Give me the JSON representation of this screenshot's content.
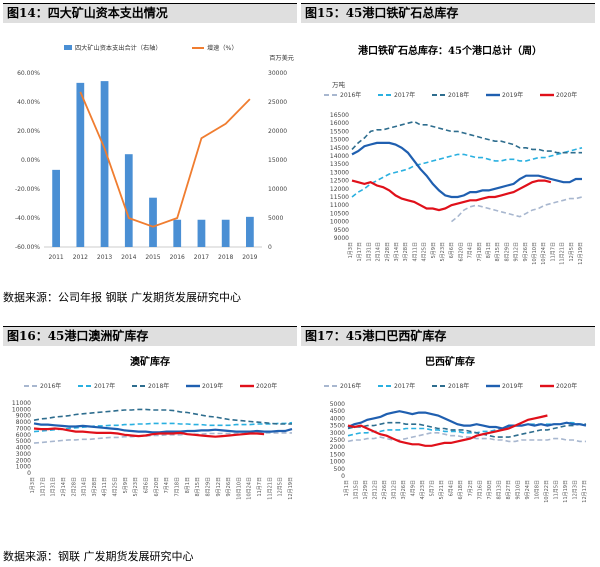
{
  "panels": [
    {
      "label": "图14：四大矿山资本支出情况"
    },
    {
      "label": "图15：45港口铁矿石总库存"
    },
    {
      "label": "图16：45港口澳洲矿库存"
    },
    {
      "label": "图17：45港口巴西矿库存"
    }
  ],
  "sources": [
    "数据来源：公司年报  钢联  广发期货发展研究中心",
    "数据来源：钢联  广发期货发展研究中心"
  ],
  "chart_data": [
    {
      "type": "bar",
      "title": "",
      "categories": [
        "2011",
        "2012",
        "2013",
        "2014",
        "2015",
        "2016",
        "2017",
        "2018",
        "2019"
      ],
      "series": [
        {
          "name": "四大矿山资本支出合计（右轴）",
          "type": "bar",
          "axis": "right",
          "color": "#4a8fd4",
          "values": [
            13300,
            28300,
            28600,
            16000,
            8500,
            4700,
            4700,
            4700,
            5200
          ]
        },
        {
          "name": "增速（%）",
          "type": "line",
          "axis": "left",
          "color": "#f07d30",
          "values": [
            null,
            47,
            8,
            -40,
            -46,
            -40,
            15,
            25,
            42
          ]
        }
      ],
      "left_axis": {
        "min": -60,
        "max": 60,
        "step": 20,
        "unit": "%"
      },
      "right_axis": {
        "min": 0,
        "max": 30000,
        "step": 5000,
        "label": "百万美元"
      }
    },
    {
      "type": "line",
      "title": "港口铁矿石总库存：45个港口总计（周）",
      "unit": "万吨",
      "ylim": [
        9000,
        16500
      ],
      "ystep": 500,
      "xlabels": [
        "1月3日",
        "1月17日",
        "1月31日",
        "2月14日",
        "2月28日",
        "3月14日",
        "3月28日",
        "4月11日",
        "4月25日",
        "5月9日",
        "5月23日",
        "6月6日",
        "6月20日",
        "7月4日",
        "7月18日",
        "8月1日",
        "8月15日",
        "8月29日",
        "9月12日",
        "9月26日",
        "10月10日",
        "10月24日",
        "11月7日",
        "11月21日",
        "12月5日",
        "12月19日"
      ],
      "series": [
        {
          "name": "2016年",
          "color": "#a8b7cf",
          "dash": "5,3",
          "values": [
            null,
            null,
            null,
            null,
            null,
            null,
            null,
            null,
            null,
            null,
            null,
            null,
            null,
            null,
            null,
            null,
            10000,
            10300,
            10700,
            10900,
            11000,
            10900,
            10800,
            10700,
            10600,
            10500,
            10400,
            10300,
            10500,
            10700,
            10800,
            11000,
            11100,
            11200,
            11300,
            11400,
            11400,
            11500
          ]
        },
        {
          "name": "2017年",
          "color": "#2ab0e0",
          "dash": "5,3",
          "values": [
            11500,
            11800,
            12000,
            12300,
            12500,
            12700,
            12900,
            13000,
            13100,
            13200,
            13400,
            13500,
            13600,
            13700,
            13800,
            13900,
            14000,
            14100,
            14100,
            14000,
            13900,
            13900,
            13800,
            13700,
            13700,
            13800,
            13800,
            13700,
            13700,
            13800,
            13900,
            13900,
            14000,
            14100,
            14200,
            14300,
            14400,
            14500
          ]
        },
        {
          "name": "2018年",
          "color": "#2e6d8e",
          "dash": "5,3",
          "values": [
            14400,
            14800,
            15100,
            15500,
            15600,
            15600,
            15700,
            15800,
            15900,
            16000,
            16100,
            15900,
            15900,
            15800,
            15700,
            15600,
            15500,
            15500,
            15400,
            15300,
            15200,
            15100,
            15000,
            14900,
            14900,
            14800,
            14700,
            14500,
            14500,
            14400,
            14400,
            14300,
            14300,
            14200,
            14200,
            14200,
            14200,
            14200
          ]
        },
        {
          "name": "2019年",
          "color": "#1f5fb0",
          "dash": "",
          "values": [
            14100,
            14300,
            14600,
            14700,
            14800,
            14800,
            14800,
            14700,
            14500,
            14200,
            13700,
            13200,
            12800,
            12300,
            11900,
            11600,
            11500,
            11500,
            11600,
            11800,
            11800,
            11900,
            11900,
            12000,
            12100,
            12200,
            12300,
            12600,
            12800,
            12800,
            12800,
            12700,
            12600,
            12500,
            12400,
            12400,
            12600,
            12600
          ]
        },
        {
          "name": "2020年",
          "color": "#e0101a",
          "dash": "",
          "values": [
            12500,
            12400,
            12300,
            12400,
            12200,
            12100,
            11900,
            11600,
            11400,
            11300,
            11200,
            11000,
            10800,
            10800,
            10700,
            10800,
            11000,
            11100,
            11200,
            11300,
            11300,
            11400,
            11500,
            11500,
            11600,
            11700,
            11800,
            12000,
            12200,
            12400,
            12500,
            12500,
            12400,
            null,
            null,
            null,
            null,
            null
          ]
        }
      ]
    },
    {
      "type": "line",
      "title": "澳矿库存",
      "ylim": [
        0,
        11000
      ],
      "ystep": 1000,
      "xlabels": [
        "1月3日",
        "1月17日",
        "1月31日",
        "2月14日",
        "2月28日",
        "3月14日",
        "3月28日",
        "4月11日",
        "4月25日",
        "5月9日",
        "5月23日",
        "6月6日",
        "6月20日",
        "7月4日",
        "7月18日",
        "8月1日",
        "8月15日",
        "8月29日",
        "9月12日",
        "9月26日",
        "10月10日",
        "10月24日",
        "11月7日",
        "11月21日",
        "12月5日",
        "12月19日"
      ],
      "series": [
        {
          "name": "2016年",
          "color": "#a8b7cf",
          "dash": "5,3",
          "values": [
            4700,
            4800,
            4900,
            5000,
            5100,
            5200,
            5200,
            5300,
            5300,
            5400,
            5500,
            5600,
            5600,
            5700,
            5700,
            5800,
            5800,
            5900,
            5900,
            6000,
            6000,
            6000,
            6100,
            6100,
            6100,
            6200,
            6200,
            6200,
            6200,
            6200,
            6200,
            6300,
            6300,
            6300,
            6300,
            6300,
            6300,
            6300
          ]
        },
        {
          "name": "2017年",
          "color": "#2ab0e0",
          "dash": "5,3",
          "values": [
            6500,
            6600,
            6700,
            6800,
            6900,
            7000,
            7100,
            7200,
            7300,
            7400,
            7400,
            7500,
            7500,
            7600,
            7600,
            7700,
            7700,
            7800,
            7800,
            7800,
            7800,
            7700,
            7700,
            7600,
            7600,
            7500,
            7500,
            7500,
            7500,
            7600,
            7600,
            7600,
            7700,
            7700,
            7700,
            7800,
            7800,
            7900
          ]
        },
        {
          "name": "2018年",
          "color": "#2e6d8e",
          "dash": "5,3",
          "values": [
            8300,
            8500,
            8600,
            8800,
            8900,
            9000,
            9200,
            9300,
            9400,
            9500,
            9600,
            9700,
            9800,
            9900,
            9900,
            10000,
            10000,
            9900,
            9900,
            9900,
            9800,
            9600,
            9500,
            9300,
            9100,
            8900,
            8800,
            8600,
            8400,
            8300,
            8200,
            8100,
            8000,
            7900,
            7800,
            7700,
            7700,
            7700
          ]
        },
        {
          "name": "2019年",
          "color": "#1f5fb0",
          "dash": "",
          "values": [
            7800,
            7600,
            7600,
            7500,
            7400,
            7300,
            7300,
            7400,
            7300,
            7200,
            7100,
            7000,
            6900,
            6700,
            6600,
            6500,
            6500,
            6400,
            6400,
            6500,
            6500,
            6500,
            6600,
            6600,
            6700,
            6700,
            6800,
            6700,
            6600,
            6500,
            6500,
            6500,
            6600,
            6500,
            6500,
            6600,
            6600,
            6900
          ]
        },
        {
          "name": "2020年",
          "color": "#e0101a",
          "dash": "",
          "values": [
            7000,
            6900,
            6900,
            7000,
            6900,
            6700,
            6500,
            6500,
            6400,
            6300,
            6300,
            6300,
            6200,
            6000,
            5900,
            5800,
            5900,
            6100,
            6200,
            6200,
            6200,
            6300,
            6100,
            6000,
            5900,
            5800,
            5700,
            5800,
            5900,
            6000,
            6100,
            6200,
            6200,
            6100,
            null,
            null,
            null,
            null
          ]
        }
      ]
    },
    {
      "type": "line",
      "title": "巴西矿库存",
      "ylim": [
        0,
        5000
      ],
      "ystep": 500,
      "xlabels": [
        "1月1日",
        "1月15日",
        "1月29日",
        "2月12日",
        "2月26日",
        "3月12日",
        "3月26日",
        "4月9日",
        "4月23日",
        "5月7日",
        "5月21日",
        "6月4日",
        "6月18日",
        "7月2日",
        "7月16日",
        "7月30日",
        "8月13日",
        "8月27日",
        "9月10日",
        "9月24日",
        "10月8日",
        "10月22日",
        "11月5日",
        "11月19日",
        "12月3日",
        "12月17日"
      ],
      "series": [
        {
          "name": "2016年",
          "color": "#a8b7cf",
          "dash": "5,3",
          "values": [
            2400,
            2500,
            2500,
            2600,
            2600,
            2700,
            2600,
            2500,
            2500,
            2600,
            2700,
            2800,
            2900,
            3000,
            3000,
            2900,
            2800,
            2800,
            2700,
            2700,
            2600,
            2600,
            2600,
            2500,
            2500,
            2400,
            2400,
            2500,
            2500,
            2500,
            2500,
            2500,
            2600,
            2600,
            2500,
            2500,
            2400,
            2400
          ]
        },
        {
          "name": "2017年",
          "color": "#2ab0e0",
          "dash": "5,3",
          "values": [
            2800,
            2900,
            3000,
            3000,
            3100,
            3100,
            3200,
            3200,
            3200,
            3300,
            3300,
            3300,
            3300,
            3200,
            3200,
            3100,
            3100,
            3100,
            3000,
            3000,
            3000,
            3100,
            3100,
            3200,
            3300,
            3400,
            3500,
            3500,
            3600,
            3600,
            3600,
            3600,
            3600,
            3600,
            3700,
            3700,
            3600,
            3600
          ]
        },
        {
          "name": "2018年",
          "color": "#2e6d8e",
          "dash": "5,3",
          "values": [
            3300,
            3400,
            3400,
            3500,
            3500,
            3600,
            3700,
            3700,
            3700,
            3600,
            3600,
            3600,
            3500,
            3400,
            3300,
            3300,
            3200,
            3200,
            3200,
            3100,
            3000,
            2900,
            2800,
            2700,
            2700,
            2700,
            2800,
            2900,
            3000,
            3100,
            3200,
            3200,
            3300,
            3400,
            3500,
            3500,
            3600,
            3600
          ]
        },
        {
          "name": "2019年",
          "color": "#1f5fb0",
          "dash": "",
          "values": [
            3400,
            3600,
            3700,
            3900,
            4000,
            4100,
            4300,
            4400,
            4500,
            4400,
            4300,
            4400,
            4400,
            4300,
            4200,
            4000,
            3800,
            3600,
            3500,
            3500,
            3600,
            3500,
            3400,
            3400,
            3300,
            3500,
            3500,
            3500,
            3600,
            3500,
            3600,
            3500,
            3600,
            3600,
            3700,
            3600,
            3600,
            3500
          ]
        },
        {
          "name": "2020年",
          "color": "#e0101a",
          "dash": "",
          "values": [
            3500,
            3400,
            3500,
            3300,
            3100,
            2900,
            2800,
            2600,
            2400,
            2300,
            2200,
            2200,
            2100,
            2100,
            2200,
            2300,
            2300,
            2400,
            2500,
            2600,
            2800,
            2900,
            3000,
            3100,
            3200,
            3300,
            3500,
            3700,
            3900,
            4000,
            4100,
            4200,
            null,
            null,
            null,
            null,
            null,
            null
          ]
        }
      ]
    }
  ],
  "legend14": {
    "bar": "四大矿山资本支出合计（右轴）",
    "line": "增速（%）"
  },
  "yearLegend": [
    "2016年",
    "2017年",
    "2018年",
    "2019年",
    "2020年"
  ]
}
